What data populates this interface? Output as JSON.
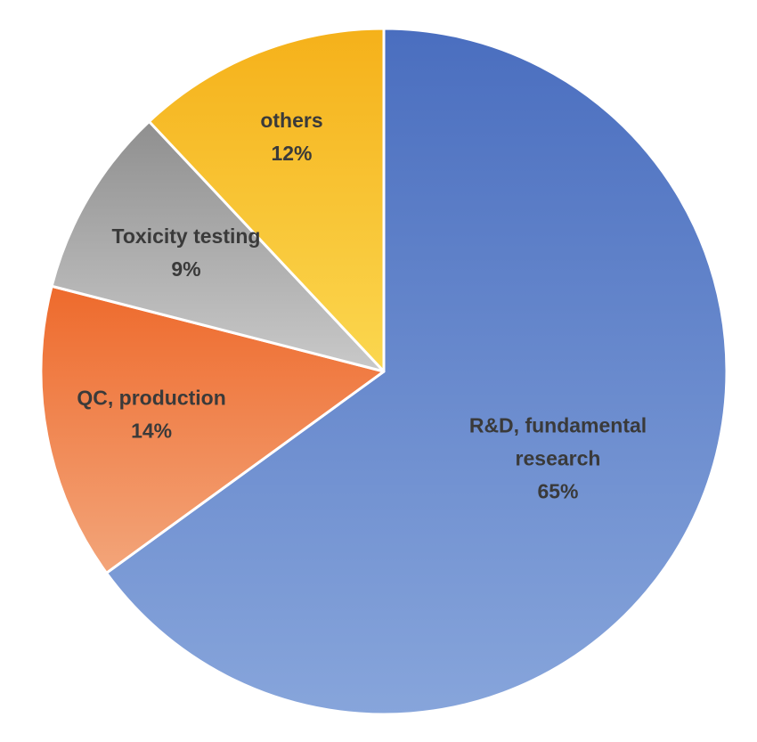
{
  "chart_data": {
    "type": "pie",
    "start_angle_deg": 0,
    "direction": "clockwise",
    "slices": [
      {
        "label_lines": [
          "R&D, fundamental",
          "research"
        ],
        "percent_label": "65%",
        "value": 65,
        "color_top": "#4a6ebf",
        "color_bottom": "#87a5db"
      },
      {
        "label_lines": [
          "QC, production"
        ],
        "percent_label": "14%",
        "value": 14,
        "color_top": "#ee6a2c",
        "color_bottom": "#f3a57a"
      },
      {
        "label_lines": [
          "Toxicity testing"
        ],
        "percent_label": "9%",
        "value": 9,
        "color_top": "#8f8f8f",
        "color_bottom": "#c9c9c9"
      },
      {
        "label_lines": [
          "others"
        ],
        "percent_label": "12%",
        "value": 12,
        "color_top": "#f5b11a",
        "color_bottom": "#fbd74f"
      }
    ]
  }
}
